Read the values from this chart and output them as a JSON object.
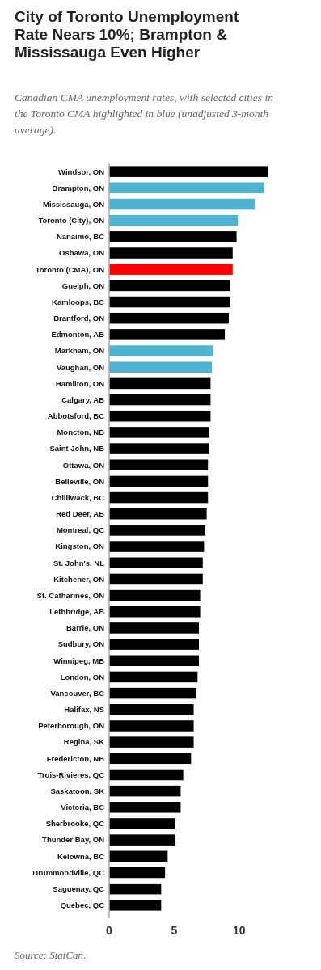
{
  "chart_data": {
    "type": "bar",
    "orientation": "horizontal",
    "title": "City of Toronto Unemployment Rate Nears 10%; Brampton & Mississauga Even Higher",
    "subtitle": "Canadian CMA unemployment rates, with selected cities in the Toronto CMA highlighted in blue (unadjusted 3-month average).",
    "categories": [
      "Windsor, ON",
      "Brampton, ON",
      "Mississauga, ON",
      "Toronto (City), ON",
      "Nanaimo, BC",
      "Oshawa, ON",
      "Toronto (CMA), ON",
      "Guelph, ON",
      "Kamloops, BC",
      "Brantford, ON",
      "Edmonton, AB",
      "Markham, ON",
      "Vaughan, ON",
      "Hamilton, ON",
      "Calgary, AB",
      "Abbotsford, BC",
      "Moncton, NB",
      "Saint John, NB",
      "Ottawa, ON",
      "Belleville, ON",
      "Chilliwack, BC",
      "Red Deer, AB",
      "Montreal, QC",
      "Kingston, ON",
      "St. John's, NL",
      "Kitchener, ON",
      "St. Catharines, ON",
      "Lethbridge, AB",
      "Barrie, ON",
      "Sudbury, ON",
      "Winnipeg, MB",
      "London, ON",
      "Vancouver, BC",
      "Halifax, NS",
      "Peterborough, ON",
      "Regina, SK",
      "Fredericton, NB",
      "Trois-Rivieres, QC",
      "Saskatoon, SK",
      "Victoria, BC",
      "Sherbrooke, QC",
      "Thunder Bay, ON",
      "Kelowna, BC",
      "Drummondville, QC",
      "Saguenay, QC",
      "Quebec, QC"
    ],
    "values": [
      12.2,
      11.9,
      11.2,
      9.9,
      9.8,
      9.5,
      9.5,
      9.3,
      9.3,
      9.2,
      8.9,
      8.0,
      7.9,
      7.8,
      7.8,
      7.8,
      7.7,
      7.7,
      7.6,
      7.6,
      7.6,
      7.5,
      7.4,
      7.3,
      7.2,
      7.2,
      7.0,
      7.0,
      6.9,
      6.9,
      6.9,
      6.8,
      6.7,
      6.5,
      6.5,
      6.5,
      6.3,
      5.7,
      5.5,
      5.5,
      5.1,
      5.1,
      4.5,
      4.3,
      4.0,
      4.0
    ],
    "colors": [
      "#000000",
      "#4db3d0",
      "#4db3d0",
      "#4db3d0",
      "#000000",
      "#000000",
      "#ff0000",
      "#000000",
      "#000000",
      "#000000",
      "#000000",
      "#4db3d0",
      "#4db3d0",
      "#000000",
      "#000000",
      "#000000",
      "#000000",
      "#000000",
      "#000000",
      "#000000",
      "#000000",
      "#000000",
      "#000000",
      "#000000",
      "#000000",
      "#000000",
      "#000000",
      "#000000",
      "#000000",
      "#000000",
      "#000000",
      "#000000",
      "#000000",
      "#000000",
      "#000000",
      "#000000",
      "#000000",
      "#000000",
      "#000000",
      "#000000",
      "#000000",
      "#000000",
      "#000000",
      "#000000",
      "#000000",
      "#000000"
    ],
    "xlim": [
      0,
      12.5
    ],
    "xticks": [
      0,
      5,
      10
    ],
    "grid": false,
    "annotations": [
      "Source: StatCan."
    ]
  }
}
